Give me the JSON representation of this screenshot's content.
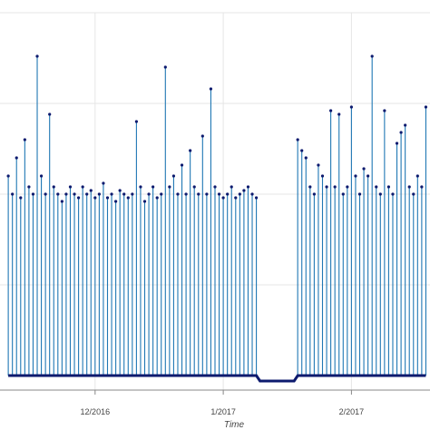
{
  "chart_data": {
    "type": "line",
    "title": "",
    "xlabel": "Time",
    "ylabel": "",
    "x_ticks": [
      "12/2016",
      "1/2017",
      "2/2017"
    ],
    "x_range": [
      "2016-11-08",
      "2017-02-20"
    ],
    "y_range": [
      0,
      1
    ],
    "grid": true,
    "series": [
      {
        "points": [
          [
            "2016-11-10",
            0.55
          ],
          [
            "2016-11-11",
            0.5
          ],
          [
            "2016-11-12",
            0.6
          ],
          [
            "2016-11-13",
            0.49
          ],
          [
            "2016-11-14",
            0.65
          ],
          [
            "2016-11-15",
            0.52
          ],
          [
            "2016-11-16",
            0.5
          ],
          [
            "2016-11-17",
            0.88
          ],
          [
            "2016-11-18",
            0.55
          ],
          [
            "2016-11-19",
            0.5
          ],
          [
            "2016-11-20",
            0.72
          ],
          [
            "2016-11-21",
            0.52
          ],
          [
            "2016-11-22",
            0.5
          ],
          [
            "2016-11-23",
            0.48
          ],
          [
            "2016-11-24",
            0.5
          ],
          [
            "2016-11-25",
            0.52
          ],
          [
            "2016-11-26",
            0.5
          ],
          [
            "2016-11-27",
            0.49
          ],
          [
            "2016-11-28",
            0.52
          ],
          [
            "2016-11-29",
            0.5
          ],
          [
            "2016-11-30",
            0.51
          ],
          [
            "2016-12-01",
            0.49
          ],
          [
            "2016-12-02",
            0.5
          ],
          [
            "2016-12-03",
            0.53
          ],
          [
            "2016-12-04",
            0.49
          ],
          [
            "2016-12-05",
            0.5
          ],
          [
            "2016-12-06",
            0.48
          ],
          [
            "2016-12-07",
            0.51
          ],
          [
            "2016-12-08",
            0.5
          ],
          [
            "2016-12-09",
            0.49
          ],
          [
            "2016-12-10",
            0.5
          ],
          [
            "2016-12-11",
            0.7
          ],
          [
            "2016-12-12",
            0.52
          ],
          [
            "2016-12-13",
            0.48
          ],
          [
            "2016-12-14",
            0.5
          ],
          [
            "2016-12-15",
            0.52
          ],
          [
            "2016-12-16",
            0.49
          ],
          [
            "2016-12-17",
            0.5
          ],
          [
            "2016-12-18",
            0.85
          ],
          [
            "2016-12-19",
            0.52
          ],
          [
            "2016-12-20",
            0.55
          ],
          [
            "2016-12-21",
            0.5
          ],
          [
            "2016-12-22",
            0.58
          ],
          [
            "2016-12-23",
            0.5
          ],
          [
            "2016-12-24",
            0.62
          ],
          [
            "2016-12-25",
            0.52
          ],
          [
            "2016-12-26",
            0.5
          ],
          [
            "2016-12-27",
            0.66
          ],
          [
            "2016-12-28",
            0.5
          ],
          [
            "2016-12-29",
            0.79
          ],
          [
            "2016-12-30",
            0.52
          ],
          [
            "2016-12-31",
            0.5
          ],
          [
            "2017-01-01",
            0.49
          ],
          [
            "2017-01-02",
            0.5
          ],
          [
            "2017-01-03",
            0.52
          ],
          [
            "2017-01-04",
            0.49
          ],
          [
            "2017-01-05",
            0.5
          ],
          [
            "2017-01-06",
            0.51
          ],
          [
            "2017-01-07",
            0.52
          ],
          [
            "2017-01-08",
            0.5
          ],
          [
            "2017-01-09",
            0.49
          ],
          [
            "2017-01-19",
            0.65
          ],
          [
            "2017-01-20",
            0.62
          ],
          [
            "2017-01-21",
            0.6
          ],
          [
            "2017-01-22",
            0.52
          ],
          [
            "2017-01-23",
            0.5
          ],
          [
            "2017-01-24",
            0.58
          ],
          [
            "2017-01-25",
            0.55
          ],
          [
            "2017-01-26",
            0.52
          ],
          [
            "2017-01-27",
            0.73
          ],
          [
            "2017-01-28",
            0.52
          ],
          [
            "2017-01-29",
            0.72
          ],
          [
            "2017-01-30",
            0.5
          ],
          [
            "2017-01-31",
            0.52
          ],
          [
            "2017-02-01",
            0.74
          ],
          [
            "2017-02-02",
            0.55
          ],
          [
            "2017-02-03",
            0.5
          ],
          [
            "2017-02-04",
            0.57
          ],
          [
            "2017-02-05",
            0.55
          ],
          [
            "2017-02-06",
            0.88
          ],
          [
            "2017-02-07",
            0.52
          ],
          [
            "2017-02-08",
            0.5
          ],
          [
            "2017-02-09",
            0.73
          ],
          [
            "2017-02-10",
            0.52
          ],
          [
            "2017-02-11",
            0.5
          ],
          [
            "2017-02-12",
            0.64
          ],
          [
            "2017-02-13",
            0.67
          ],
          [
            "2017-02-14",
            0.69
          ],
          [
            "2017-02-15",
            0.52
          ],
          [
            "2017-02-16",
            0.5
          ],
          [
            "2017-02-17",
            0.55
          ],
          [
            "2017-02-18",
            0.52
          ],
          [
            "2017-02-19",
            0.74
          ]
        ]
      }
    ]
  }
}
